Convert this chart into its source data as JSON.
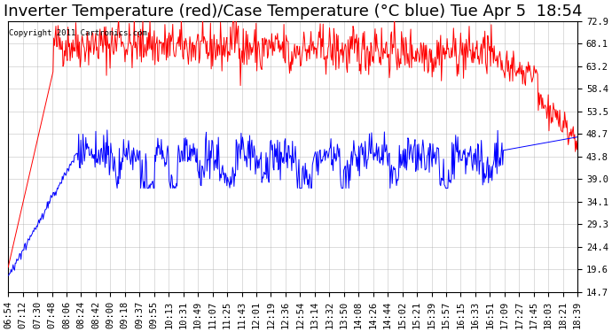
{
  "title": "Inverter Temperature (red)/Case Temperature (°C blue) Tue Apr 5  18:54",
  "copyright": "Copyright 2011 Cartronics.com",
  "y_ticks": [
    14.7,
    19.6,
    24.4,
    29.3,
    34.1,
    39.0,
    43.8,
    48.7,
    53.5,
    58.4,
    63.2,
    68.1,
    72.9
  ],
  "y_min": 14.7,
  "y_max": 72.9,
  "x_labels": [
    "06:54",
    "07:12",
    "07:30",
    "07:48",
    "08:06",
    "08:24",
    "08:42",
    "09:00",
    "09:18",
    "09:37",
    "09:55",
    "10:13",
    "10:31",
    "10:49",
    "11:07",
    "11:25",
    "11:43",
    "12:01",
    "12:19",
    "12:36",
    "12:54",
    "13:14",
    "13:32",
    "13:50",
    "14:08",
    "14:26",
    "14:44",
    "15:02",
    "15:21",
    "15:39",
    "15:57",
    "16:15",
    "16:33",
    "16:51",
    "17:09",
    "17:27",
    "17:45",
    "18:03",
    "18:21",
    "18:39"
  ],
  "bg_color": "#ffffff",
  "plot_bg_color": "#ffffff",
  "grid_color": "#aaaaaa",
  "red_color": "#ff0000",
  "blue_color": "#0000ff",
  "title_fontsize": 13,
  "tick_fontsize": 7.5
}
